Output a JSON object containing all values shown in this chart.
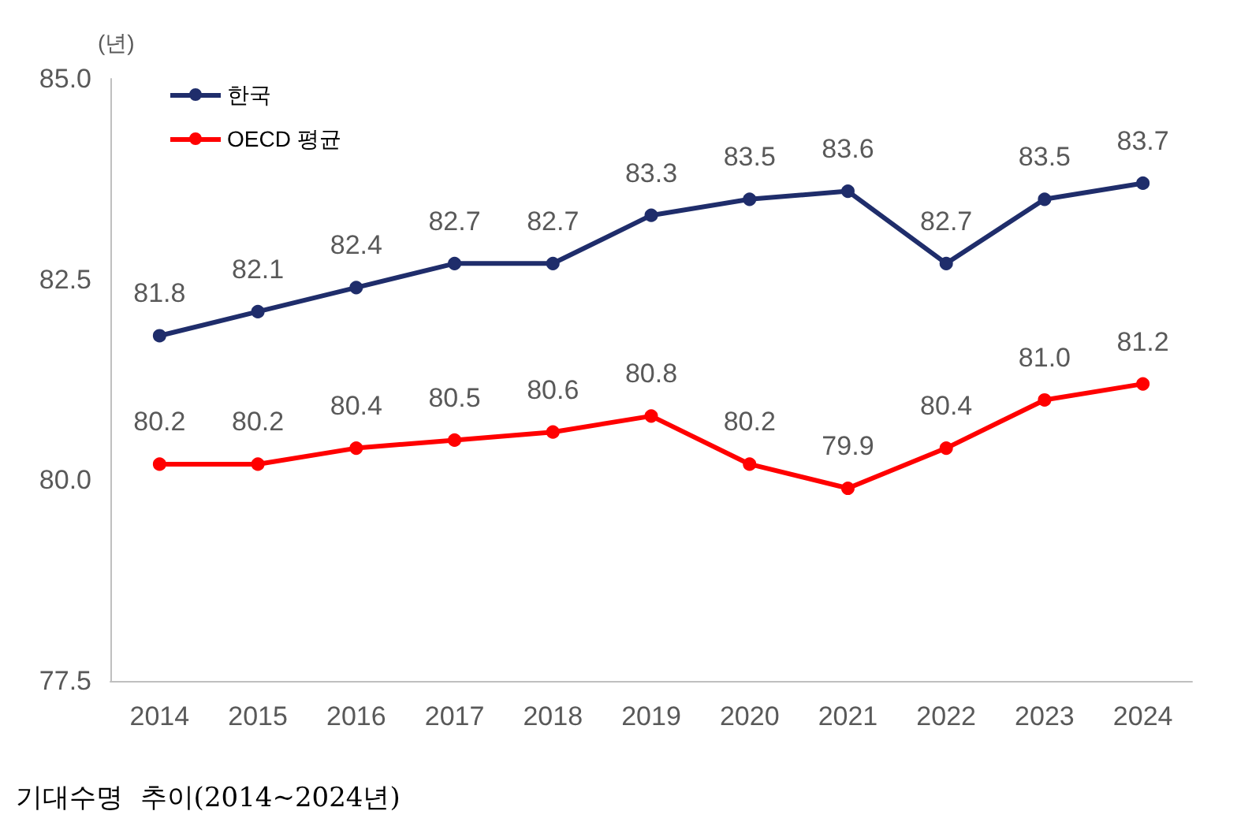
{
  "chart_data": {
    "type": "line",
    "ylabel": "(년)",
    "categories": [
      "2014",
      "2015",
      "2016",
      "2017",
      "2018",
      "2019",
      "2020",
      "2021",
      "2022",
      "2023",
      "2024"
    ],
    "series": [
      {
        "name": "한국",
        "color": "#1f2d6b",
        "values": [
          81.8,
          82.1,
          82.4,
          82.7,
          82.7,
          83.3,
          83.5,
          83.6,
          82.7,
          83.5,
          83.7
        ],
        "value_labels": [
          "81.8",
          "82.1",
          "82.4",
          "82.7",
          "82.7",
          "83.3",
          "83.5",
          "83.6",
          "82.7",
          "83.5",
          "83.7"
        ]
      },
      {
        "name": "OECD 평균",
        "color": "#ff0000",
        "values": [
          80.2,
          80.2,
          80.4,
          80.5,
          80.6,
          80.8,
          80.2,
          79.9,
          80.4,
          81.0,
          81.2
        ],
        "value_labels": [
          "80.2",
          "80.2",
          "80.4",
          "80.5",
          "80.6",
          "80.8",
          "80.2",
          "79.9",
          "80.4",
          "81.0",
          "81.2"
        ]
      }
    ],
    "ylim": [
      77.5,
      85
    ],
    "yticks": [
      77.5,
      {
        "value": 80,
        "label": "80.0"
      },
      82.5,
      {
        "value": 85,
        "label": "85.0"
      }
    ],
    "grid": false,
    "legend": "top left",
    "marker": "circle",
    "line_style": "solid",
    "annotations": [
      "기대수명  추이(2014~2024년)"
    ]
  }
}
